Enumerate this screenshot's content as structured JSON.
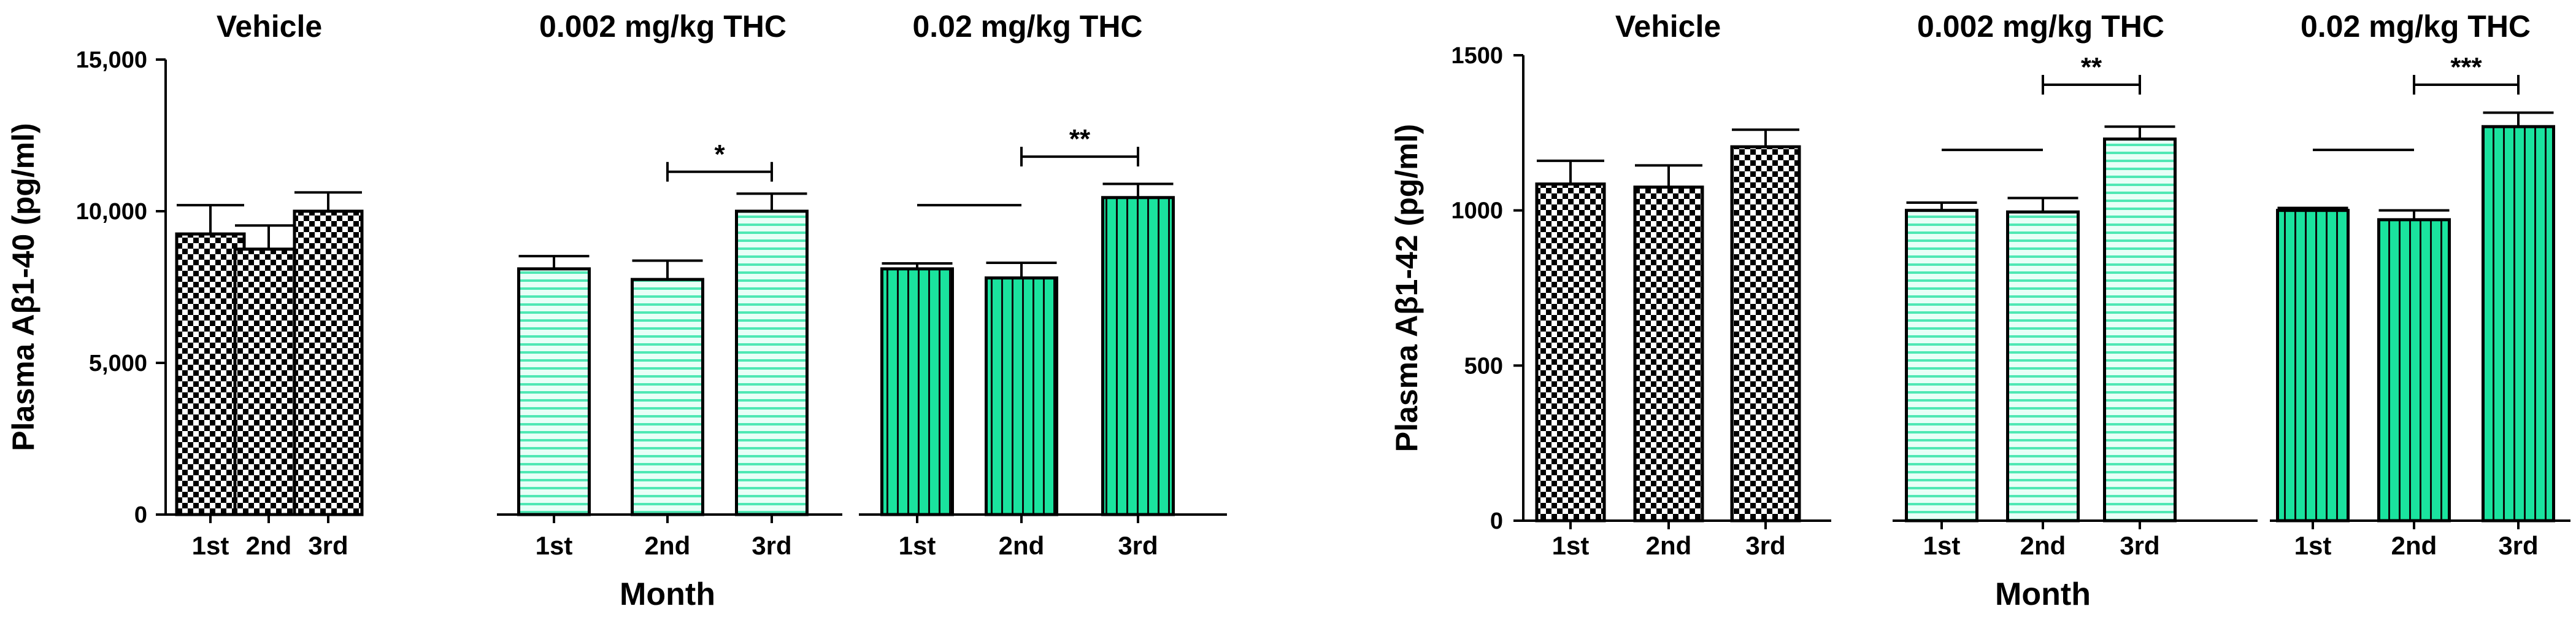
{
  "colors": {
    "vehicle_fill": "#ffffff",
    "vehicle_pattern": "#000000",
    "low_dose_fill": "#e8fff7",
    "low_dose_line": "#4fe8b4",
    "high_dose_fill": "#1ae39e",
    "high_dose_line": "#0a0a0a",
    "ink": "#000000"
  },
  "chart_data": [
    {
      "type": "bar",
      "ylabel": "Plasma Aβ1-40 (pg/ml)",
      "xlabel": "Month",
      "ylim": [
        0,
        15000
      ],
      "yticks": [
        "0",
        "5,000",
        "10,000",
        "15,000"
      ],
      "ytick_values": [
        0,
        5000,
        10000,
        15000
      ],
      "grid": false,
      "panels": [
        {
          "title": "Vehicle",
          "pattern": "checker",
          "categories": [
            "1st",
            "2nd",
            "3rd"
          ],
          "values": [
            9250,
            8750,
            10000
          ],
          "errors": [
            950,
            780,
            620
          ],
          "significance": []
        },
        {
          "title": "0.002 mg/kg THC",
          "pattern": "hlines",
          "categories": [
            "1st",
            "2nd",
            "3rd"
          ],
          "values": [
            8100,
            7750,
            10000
          ],
          "errors": [
            420,
            620,
            580
          ],
          "significance": [
            {
              "from": 1,
              "to": 2,
              "label": "*",
              "y": 11300,
              "bracket": true
            }
          ]
        },
        {
          "title": "0.02 mg/kg THC",
          "pattern": "vlines",
          "categories": [
            "1st",
            "2nd",
            "3rd"
          ],
          "values": [
            8100,
            7800,
            10450
          ],
          "errors": [
            180,
            500,
            450
          ],
          "significance": [
            {
              "from": 0,
              "to": 1,
              "label": "",
              "y": 10200,
              "bracket": false
            },
            {
              "from": 1,
              "to": 2,
              "label": "**",
              "y": 11800,
              "bracket": true
            }
          ]
        }
      ]
    },
    {
      "type": "bar",
      "ylabel": "Plasma Aβ1-42 (pg/ml)",
      "xlabel": "Month",
      "ylim": [
        0,
        1500
      ],
      "yticks": [
        "0",
        "500",
        "1000",
        "1500"
      ],
      "ytick_values": [
        0,
        500,
        1000,
        1500
      ],
      "grid": false,
      "panels": [
        {
          "title": "Vehicle",
          "pattern": "checker",
          "categories": [
            "1st",
            "2nd",
            "3rd"
          ],
          "values": [
            1085,
            1075,
            1205
          ],
          "errors": [
            75,
            70,
            55
          ],
          "significance": []
        },
        {
          "title": "0.002 mg/kg THC",
          "pattern": "hlines",
          "categories": [
            "1st",
            "2nd",
            "3rd"
          ],
          "values": [
            1000,
            995,
            1230
          ],
          "errors": [
            25,
            45,
            40
          ],
          "significance": [
            {
              "from": 0,
              "to": 1,
              "label": "",
              "y": 1195,
              "bracket": false
            },
            {
              "from": 1,
              "to": 2,
              "label": "**",
              "y": 1405,
              "bracket": true
            }
          ]
        },
        {
          "title": "0.02 mg/kg THC",
          "pattern": "vlines",
          "categories": [
            "1st",
            "2nd",
            "3rd"
          ],
          "values": [
            1000,
            970,
            1270
          ],
          "errors": [
            8,
            30,
            45
          ],
          "significance": [
            {
              "from": 0,
              "to": 1,
              "label": "",
              "y": 1195,
              "bracket": false
            },
            {
              "from": 1,
              "to": 2,
              "label": "***",
              "y": 1405,
              "bracket": true
            }
          ]
        }
      ]
    }
  ]
}
